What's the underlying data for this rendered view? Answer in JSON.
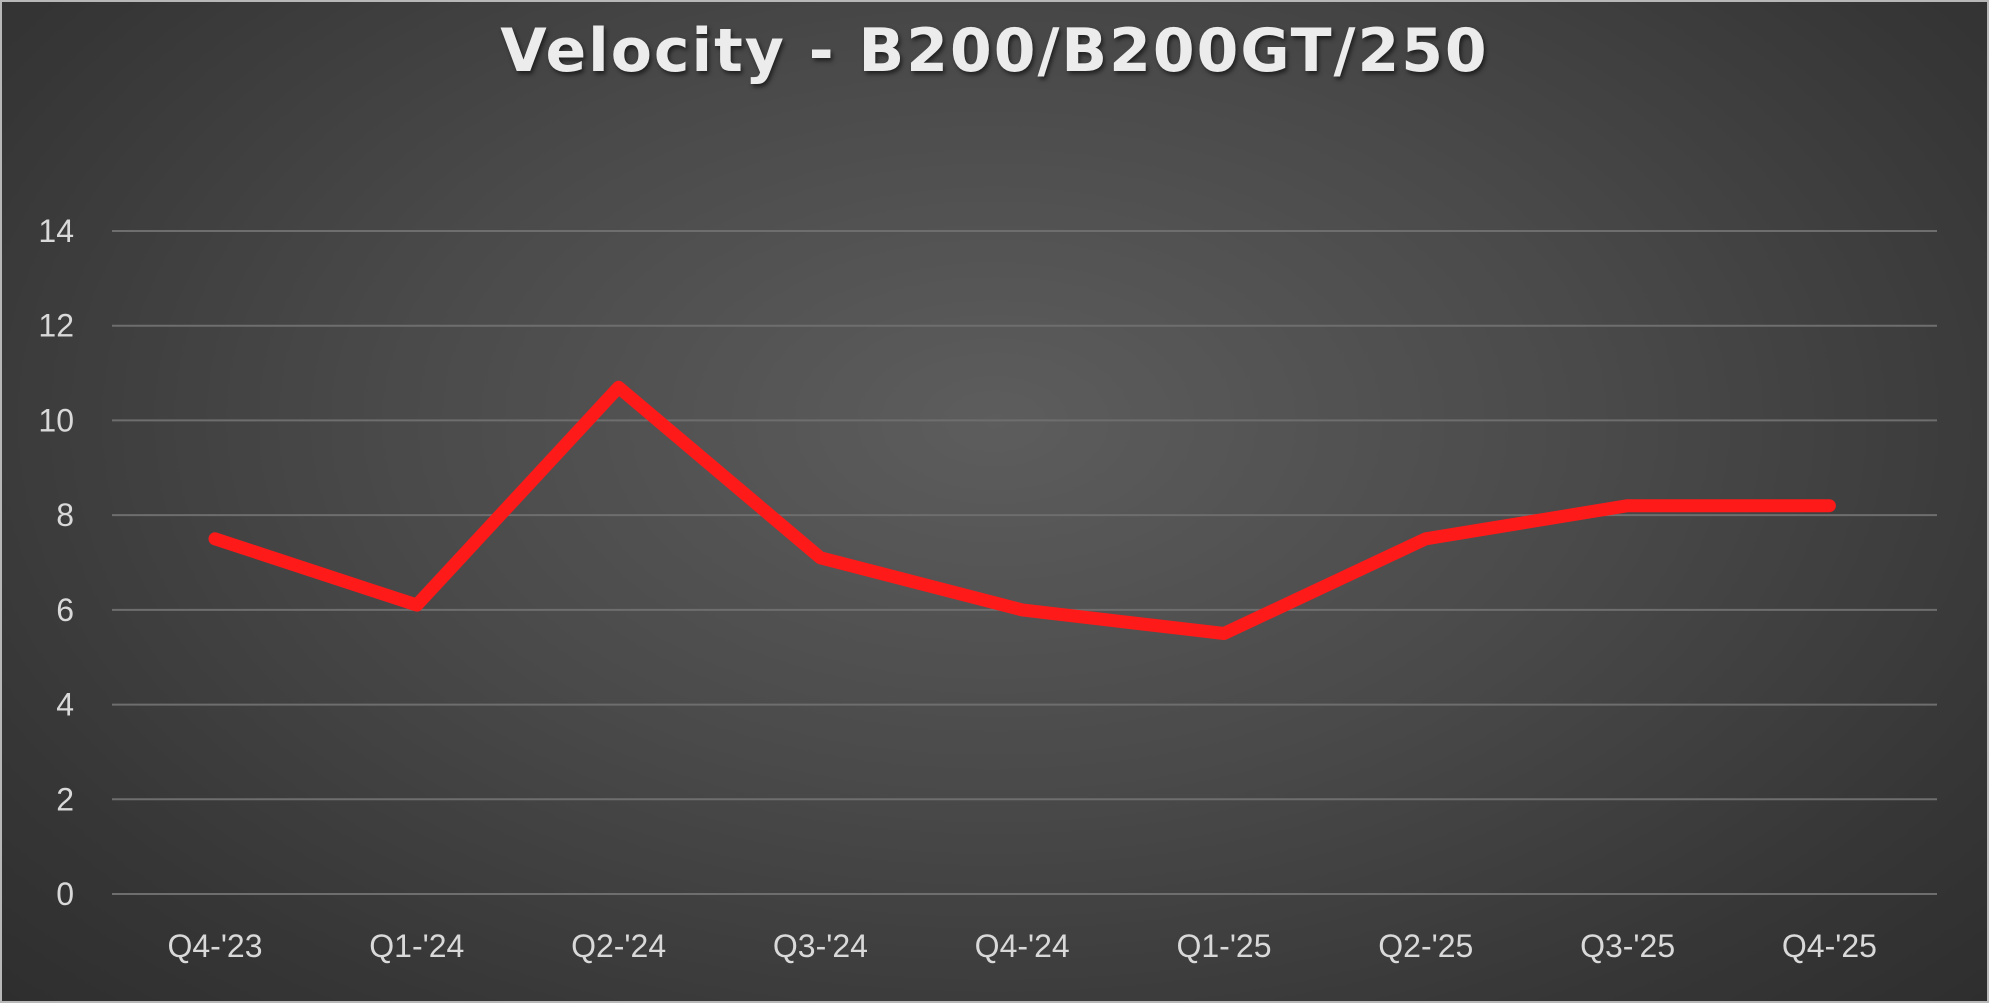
{
  "chart_data": {
    "type": "line",
    "title": "Velocity - B200/B200GT/250",
    "xlabel": "",
    "ylabel": "",
    "categories": [
      "Q4-'23",
      "Q1-'24",
      "Q2-'24",
      "Q3-'24",
      "Q4-'24",
      "Q1-'25",
      "Q2-'25",
      "Q3-'25",
      "Q4-'25"
    ],
    "series": [
      {
        "values": [
          7.5,
          6.1,
          10.7,
          7.1,
          6.0,
          5.5,
          7.5,
          8.2,
          8.2
        ],
        "color": "#ff1a1a"
      }
    ],
    "ylim": [
      0,
      14
    ],
    "yticks": [
      "0",
      "2",
      "4",
      "6",
      "8",
      "10",
      "12",
      "14"
    ],
    "grid": true,
    "legend": "none"
  }
}
